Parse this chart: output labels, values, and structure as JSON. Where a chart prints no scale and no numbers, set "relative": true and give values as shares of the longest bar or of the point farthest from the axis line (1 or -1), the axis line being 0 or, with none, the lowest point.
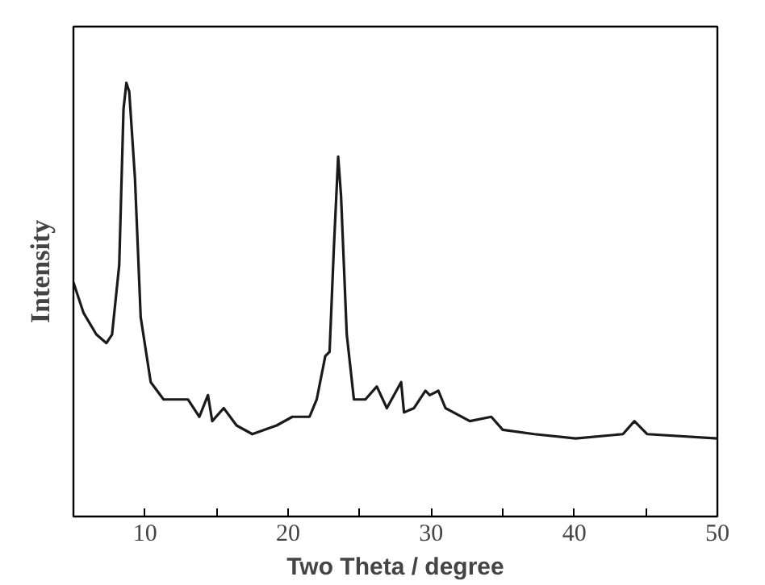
{
  "chart_data": {
    "type": "line",
    "relative": true,
    "xlabel": "Two Theta / degree",
    "ylabel": "Intensity",
    "xlim": [
      5,
      50
    ],
    "xticks": [
      {
        "value": 5,
        "label": null
      },
      10,
      {
        "value": 15,
        "label": null
      },
      20,
      {
        "value": 25,
        "label": null
      },
      30,
      {
        "value": 35,
        "label": null
      },
      40,
      {
        "value": 45,
        "label": null
      },
      50
    ],
    "tick_labels": "x",
    "line_style": "solid",
    "series": [
      {
        "color": "#1a1a1a",
        "x": [
          5,
          5.7,
          6.6,
          7.3,
          7.7,
          8.2,
          8.5,
          8.7,
          8.9,
          9.3,
          9.7,
          10.4,
          11.3,
          13.0,
          13.8,
          14.4,
          14.7,
          15.5,
          16.4,
          17.5,
          19.2,
          20.3,
          21.5,
          22.0,
          22.6,
          22.9,
          23.2,
          23.5,
          23.7,
          24.1,
          24.6,
          25.4,
          26.2,
          26.9,
          27.9,
          28.1,
          28.8,
          29.6,
          29.9,
          30.5,
          31.0,
          32.7,
          34.2,
          35.0,
          37.2,
          40.1,
          43.4,
          44.2,
          45.1,
          50
        ],
        "values": [
          0.54,
          0.47,
          0.42,
          0.4,
          0.42,
          0.58,
          0.94,
          1.0,
          0.98,
          0.78,
          0.46,
          0.31,
          0.27,
          0.27,
          0.23,
          0.28,
          0.22,
          0.25,
          0.21,
          0.19,
          0.21,
          0.23,
          0.23,
          0.27,
          0.37,
          0.38,
          0.62,
          0.83,
          0.74,
          0.42,
          0.27,
          0.27,
          0.3,
          0.25,
          0.31,
          0.24,
          0.25,
          0.29,
          0.28,
          0.29,
          0.25,
          0.22,
          0.23,
          0.2,
          0.19,
          0.18,
          0.19,
          0.22,
          0.19,
          0.18
        ]
      }
    ]
  }
}
